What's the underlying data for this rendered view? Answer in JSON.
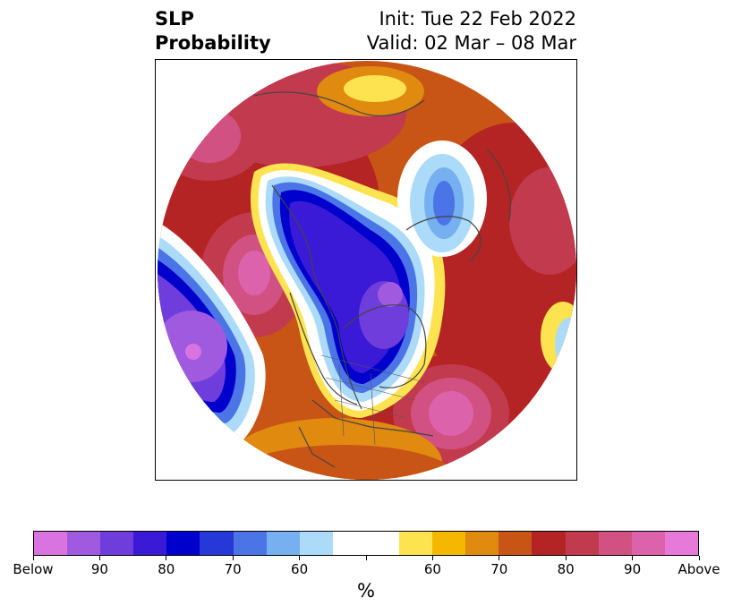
{
  "title": {
    "left_line1": "SLP",
    "left_line2": "Probability",
    "right_line1": "Init: Tue 22 Feb 2022",
    "right_line2": "Valid: 02 Mar – 08 Mar"
  },
  "colorbar": {
    "unit_label": "%",
    "colors": [
      "#d873e0",
      "#a05ae0",
      "#6f3ddb",
      "#3a1ad6",
      "#0000cc",
      "#2638d8",
      "#4b74e6",
      "#76b0f0",
      "#abdbf8",
      "#ffffff",
      "#ffffff",
      "#fde34f",
      "#f5b700",
      "#e08a10",
      "#c85415",
      "#b42424",
      "#c23a4e",
      "#d15282",
      "#dd62ac",
      "#e77ad8"
    ],
    "tick_labels": [
      "Below",
      "90",
      "80",
      "70",
      "60",
      "",
      "60",
      "70",
      "80",
      "90",
      "Above"
    ]
  }
}
